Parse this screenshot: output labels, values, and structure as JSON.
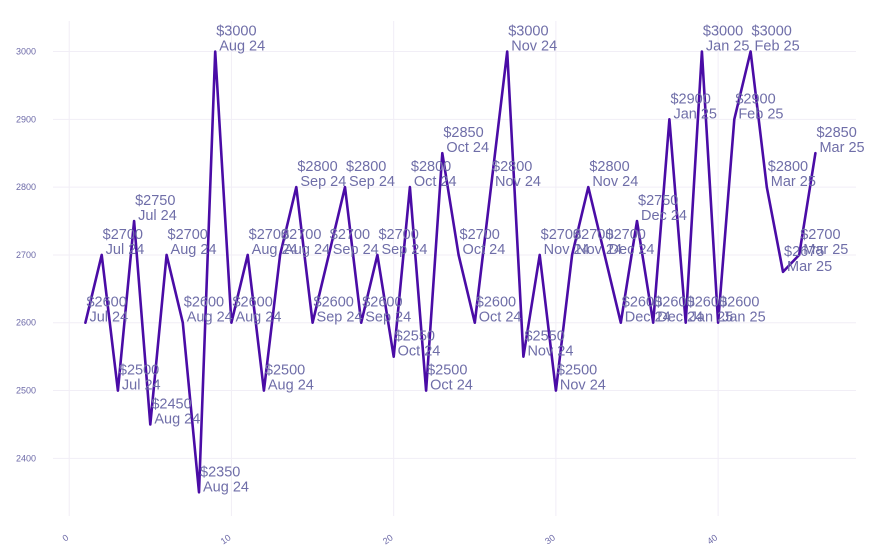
{
  "chart_data": {
    "type": "line",
    "title": "",
    "xlabel": "",
    "ylabel": "",
    "xlim": [
      -1,
      48.5
    ],
    "ylim": [
      2315,
      3045
    ],
    "x_ticks": [
      0,
      10,
      20,
      30,
      40
    ],
    "y_ticks": [
      2400,
      2500,
      2600,
      2700,
      2800,
      2900,
      3000
    ],
    "grid": true,
    "line_color": "#4a0ca6",
    "label_color": "#6f6ea8",
    "series": [
      {
        "x": [
          1,
          2,
          3,
          4,
          5,
          6,
          7,
          8,
          9,
          10,
          11,
          12,
          13,
          14,
          15,
          16,
          17,
          18,
          19,
          20,
          21,
          22,
          23,
          24,
          25,
          26,
          27,
          28,
          29,
          30,
          31,
          32,
          33,
          34,
          35,
          36,
          37,
          38,
          39,
          40,
          41,
          42,
          43,
          44,
          45,
          46
        ],
        "y": [
          2600,
          2700,
          2500,
          2750,
          2450,
          2700,
          2600,
          2350,
          3000,
          2600,
          2700,
          2500,
          2700,
          2800,
          2600,
          2700,
          2800,
          2600,
          2700,
          2550,
          2800,
          2500,
          2850,
          2700,
          2600,
          2800,
          3000,
          2550,
          2700,
          2500,
          2700,
          2800,
          2700,
          2600,
          2750,
          2600,
          2900,
          2600,
          3000,
          2600,
          2900,
          3000,
          2800,
          2675,
          2700,
          2850
        ],
        "price_labels": [
          "$2600",
          "$2700",
          "$2500",
          "$2750",
          "$2450",
          "$2700",
          "$2600",
          "$2350",
          "$3000",
          "$2600",
          "$2700",
          "$2500",
          "$2700",
          "$2800",
          "$2600",
          "$2700",
          "$2800",
          "$2600",
          "$2700",
          "$2550",
          "$2800",
          "$2500",
          "$2850",
          "$2700",
          "$2600",
          "$2800",
          "$3000",
          "$2550",
          "$2700",
          "$2500",
          "$2700",
          "$2800",
          "$2700",
          "$2600",
          "$2750",
          "$2600",
          "$2900",
          "$2600",
          "$3000",
          "$2600",
          "$2900",
          "$3000",
          "$2800",
          "$2675",
          "$2700",
          "$2850"
        ],
        "month_labels": [
          "Jul 24",
          "Jul 24",
          "Jul 24",
          "Jul 24",
          "Aug 24",
          "Aug 24",
          "Aug 24",
          "Aug 24",
          "Aug 24",
          "Aug 24",
          "Aug 24",
          "Aug 24",
          "Aug 24",
          "Sep 24",
          "Sep 24",
          "Sep 24",
          "Sep 24",
          "Sep 24",
          "Sep 24",
          "Oct 24",
          "Oct 24",
          "Oct 24",
          "Oct 24",
          "Oct 24",
          "Oct 24",
          "Nov 24",
          "Nov 24",
          "Nov 24",
          "Nov 24",
          "Nov 24",
          "Nov 24",
          "Nov 24",
          "Dec 24",
          "Dec 24",
          "Dec 24",
          "Dec 24",
          "Jan 25",
          "Jan 25",
          "Jan 25",
          "Jan 25",
          "Feb 25",
          "Feb 25",
          "Mar 25",
          "Mar 25",
          "Mar 25",
          "Mar 25"
        ]
      }
    ]
  }
}
